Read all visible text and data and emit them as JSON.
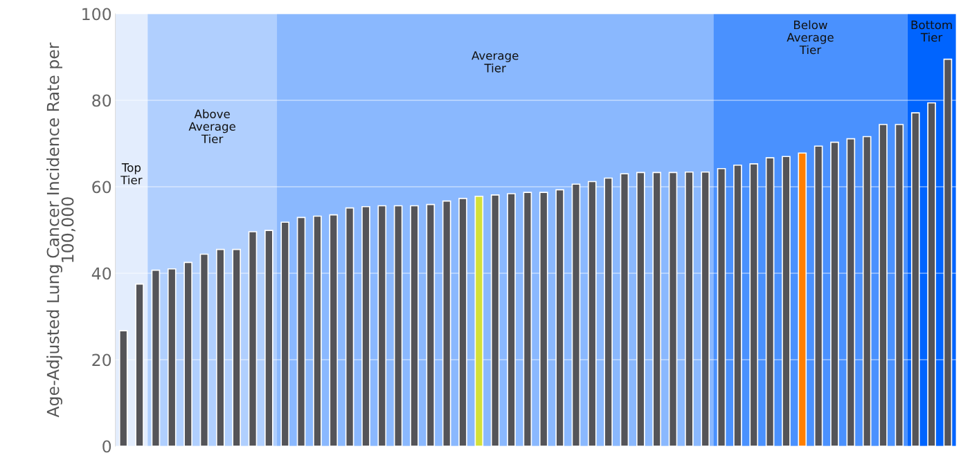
{
  "chart_data": {
    "type": "bar",
    "ylabel": "Age-Adjusted Lung Cancer Incidence Rate per\n100,000",
    "categories": [
      null,
      null,
      null,
      null,
      null,
      null,
      null,
      null,
      null,
      null,
      null,
      null,
      null,
      null,
      null,
      null,
      null,
      null,
      null,
      null,
      null,
      null,
      null,
      null,
      null,
      null,
      null,
      null,
      null,
      null,
      null,
      null,
      null,
      null,
      null,
      null,
      null,
      null,
      null,
      null,
      null,
      null,
      null,
      null,
      null,
      null,
      null,
      null,
      null,
      null,
      null,
      null
    ],
    "values": [
      26.7,
      37.5,
      40.7,
      41.0,
      42.5,
      44.4,
      45.5,
      45.5,
      49.6,
      49.9,
      51.8,
      52.9,
      53.2,
      53.5,
      55.1,
      55.4,
      55.6,
      55.6,
      55.6,
      55.9,
      56.7,
      57.3,
      57.8,
      58.1,
      58.4,
      58.7,
      58.7,
      59.3,
      60.6,
      61.2,
      62.0,
      63.0,
      63.3,
      63.3,
      63.3,
      63.4,
      63.4,
      64.2,
      65.0,
      65.3,
      66.7,
      67.0,
      67.8,
      69.4,
      70.3,
      71.1,
      71.6,
      74.4,
      74.4,
      77.1,
      79.4,
      89.5
    ],
    "colors": [
      "#545458",
      "#545458",
      "#545458",
      "#545458",
      "#545458",
      "#545458",
      "#545458",
      "#545458",
      "#545458",
      "#545458",
      "#545458",
      "#545458",
      "#545458",
      "#545458",
      "#545458",
      "#545458",
      "#545458",
      "#545458",
      "#545458",
      "#545458",
      "#545458",
      "#545458",
      "#d4e03a",
      "#545458",
      "#545458",
      "#545458",
      "#545458",
      "#545458",
      "#545458",
      "#545458",
      "#545458",
      "#545458",
      "#545458",
      "#545458",
      "#545458",
      "#545458",
      "#545458",
      "#545458",
      "#545458",
      "#545458",
      "#545458",
      "#545458",
      "#ff7f00",
      "#545458",
      "#545458",
      "#545458",
      "#545458",
      "#545458",
      "#545458",
      "#545458",
      "#545458",
      "#545458"
    ],
    "ylim": [
      0,
      100
    ],
    "yticks": [
      0,
      20,
      40,
      60,
      80,
      100
    ],
    "grid": "y",
    "legend": false,
    "tick_labels": "y",
    "annotations": [
      "Top\nTier",
      "Above\nAverage\nTier",
      "Average\nTier",
      "Below\nAverage\nTier",
      "Bottom\nTier"
    ]
  }
}
